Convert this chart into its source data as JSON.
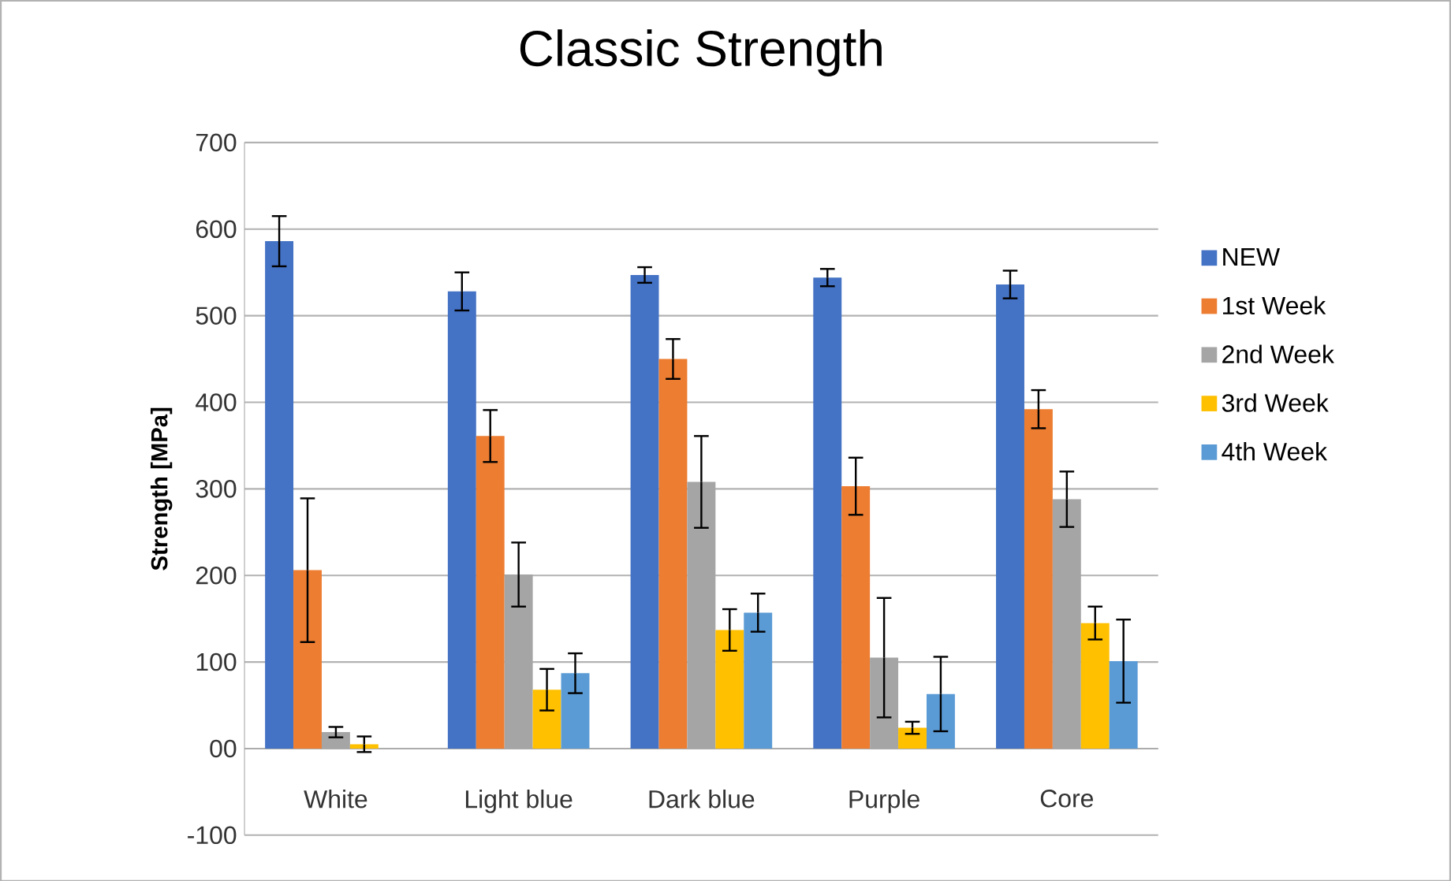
{
  "chart_data": {
    "type": "bar",
    "title": "Classic Strength",
    "ylabel": "Strength [MPa]",
    "categories": [
      "White",
      "Light blue",
      "Dark blue",
      "Purple",
      "Core"
    ],
    "series": [
      {
        "name": "NEW",
        "color": "#4472c4",
        "values": [
          586,
          528,
          547,
          544,
          536
        ],
        "errors": [
          29,
          22,
          9,
          10,
          16
        ]
      },
      {
        "name": "1st Week",
        "color": "#ed7d31",
        "values": [
          206,
          361,
          450,
          303,
          392
        ],
        "errors": [
          83,
          30,
          23,
          33,
          22
        ]
      },
      {
        "name": "2nd Week",
        "color": "#a5a5a5",
        "values": [
          19,
          201,
          308,
          105,
          288
        ],
        "errors": [
          6,
          37,
          53,
          69,
          32
        ]
      },
      {
        "name": "3rd Week",
        "color": "#ffc000",
        "values": [
          5,
          68,
          137,
          24,
          145
        ],
        "errors": [
          9,
          24,
          24,
          7,
          19
        ]
      },
      {
        "name": "4th Week",
        "color": "#5b9bd5",
        "values": [
          null,
          87,
          157,
          63,
          101
        ],
        "errors": [
          null,
          23,
          22,
          43,
          48
        ]
      }
    ],
    "ylim": [
      -100,
      700
    ],
    "yticks": [
      -100,
      {
        "value": 0,
        "label": "00"
      },
      100,
      200,
      300,
      400,
      500,
      600,
      700
    ],
    "grid": "y",
    "legend": "right"
  }
}
